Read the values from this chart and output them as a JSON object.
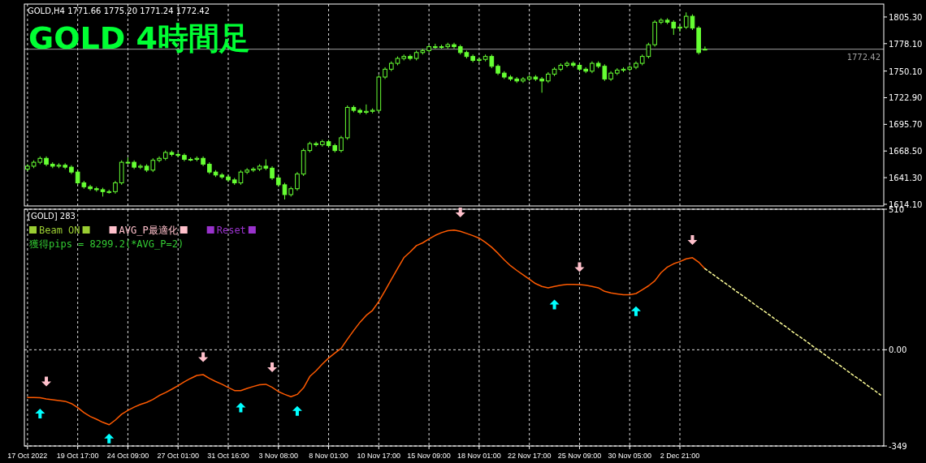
{
  "chart_data": [
    {
      "type": "candlestick",
      "title": "GOLD 4時間足",
      "subtitle": "GOLD,H4  1771.66 1775.20 1771.24 1772.42",
      "color": "#66ff33",
      "grid": "x",
      "tick_labels": "y",
      "ylim": [
        1612.4,
        1818.5
      ],
      "yticks": [
        {
          "value": 1805.3,
          "label": "1805.30"
        },
        {
          "value": 1778.1,
          "label": "1778.10"
        },
        {
          "value": 1750.1,
          "label": "1750.10"
        },
        {
          "value": 1722.9,
          "label": "1722.90"
        },
        {
          "value": 1695.7,
          "label": "1695.70"
        },
        {
          "value": 1668.5,
          "label": "1668.50"
        },
        {
          "value": 1641.3,
          "label": "1641.30"
        },
        {
          "value": 1614.1,
          "label": "1614.10"
        }
      ],
      "ref_lines": [
        {
          "axis": "y",
          "value": 1772.42,
          "label": "1772.42",
          "color": "#a0a0a0"
        }
      ],
      "ohlc": [
        [
          1650,
          1655,
          1648,
          1653
        ],
        [
          1653,
          1659,
          1651,
          1657
        ],
        [
          1657,
          1663,
          1655,
          1661
        ],
        [
          1661,
          1663,
          1653,
          1655
        ],
        [
          1655,
          1657,
          1651,
          1653
        ],
        [
          1653,
          1656,
          1651,
          1654
        ],
        [
          1654,
          1656,
          1650,
          1652
        ],
        [
          1652,
          1654,
          1645,
          1647
        ],
        [
          1647,
          1649,
          1634,
          1636
        ],
        [
          1636,
          1638,
          1630,
          1632
        ],
        [
          1632,
          1634,
          1628,
          1630
        ],
        [
          1630,
          1632,
          1627,
          1629
        ],
        [
          1629,
          1631,
          1622,
          1627
        ],
        [
          1627,
          1629,
          1625,
          1627
        ],
        [
          1627,
          1638,
          1625,
          1636
        ],
        [
          1636,
          1659,
          1634,
          1657
        ],
        [
          1657,
          1662,
          1655,
          1657
        ],
        [
          1657,
          1659,
          1650,
          1652
        ],
        [
          1652,
          1655,
          1650,
          1653
        ],
        [
          1653,
          1655,
          1647,
          1649
        ],
        [
          1649,
          1661,
          1647,
          1659
        ],
        [
          1659,
          1663,
          1657,
          1661
        ],
        [
          1661,
          1669,
          1659,
          1667
        ],
        [
          1667,
          1669,
          1663,
          1665
        ],
        [
          1665,
          1667,
          1662,
          1664
        ],
        [
          1664,
          1666,
          1658,
          1660
        ],
        [
          1660,
          1662,
          1658,
          1660
        ],
        [
          1660,
          1663,
          1658,
          1661
        ],
        [
          1661,
          1663,
          1653,
          1655
        ],
        [
          1655,
          1657,
          1645,
          1647
        ],
        [
          1647,
          1649,
          1642,
          1644
        ],
        [
          1644,
          1646,
          1640,
          1642
        ],
        [
          1642,
          1644,
          1637,
          1639
        ],
        [
          1639,
          1641,
          1634,
          1636
        ],
        [
          1636,
          1649,
          1634,
          1647
        ],
        [
          1647,
          1651,
          1645,
          1649
        ],
        [
          1649,
          1652,
          1647,
          1650
        ],
        [
          1650,
          1655,
          1648,
          1653
        ],
        [
          1653,
          1660,
          1649,
          1651
        ],
        [
          1651,
          1653,
          1639,
          1641
        ],
        [
          1641,
          1643,
          1632,
          1634
        ],
        [
          1634,
          1636,
          1619,
          1624
        ],
        [
          1624,
          1632,
          1622,
          1630
        ],
        [
          1630,
          1647,
          1628,
          1645
        ],
        [
          1645,
          1671,
          1643,
          1669
        ],
        [
          1669,
          1678,
          1667,
          1676
        ],
        [
          1676,
          1678,
          1673,
          1675
        ],
        [
          1675,
          1680,
          1673,
          1678
        ],
        [
          1678,
          1680,
          1672,
          1674
        ],
        [
          1674,
          1676,
          1667,
          1669
        ],
        [
          1669,
          1684,
          1667,
          1682
        ],
        [
          1682,
          1715,
          1680,
          1713
        ],
        [
          1713,
          1715,
          1708,
          1710
        ],
        [
          1710,
          1712,
          1706,
          1708
        ],
        [
          1708,
          1716,
          1706,
          1709
        ],
        [
          1709,
          1712,
          1707,
          1710
        ],
        [
          1710,
          1746,
          1708,
          1744
        ],
        [
          1744,
          1754,
          1742,
          1752
        ],
        [
          1752,
          1760,
          1750,
          1758
        ],
        [
          1758,
          1765,
          1756,
          1763
        ],
        [
          1763,
          1767,
          1761,
          1765
        ],
        [
          1765,
          1767,
          1761,
          1763
        ],
        [
          1763,
          1771,
          1761,
          1769
        ],
        [
          1769,
          1773,
          1767,
          1771
        ],
        [
          1771,
          1777,
          1769,
          1775
        ],
        [
          1775,
          1778,
          1773,
          1775
        ],
        [
          1775,
          1777,
          1773,
          1775
        ],
        [
          1775,
          1779,
          1773,
          1777
        ],
        [
          1777,
          1779,
          1773,
          1775
        ],
        [
          1775,
          1777,
          1767,
          1769
        ],
        [
          1769,
          1771,
          1763,
          1765
        ],
        [
          1765,
          1767,
          1759,
          1761
        ],
        [
          1761,
          1764,
          1759,
          1762
        ],
        [
          1762,
          1767,
          1760,
          1765
        ],
        [
          1765,
          1767,
          1753,
          1755
        ],
        [
          1755,
          1757,
          1746,
          1748
        ],
        [
          1748,
          1750,
          1742,
          1744
        ],
        [
          1744,
          1746,
          1740,
          1742
        ],
        [
          1742,
          1744,
          1738,
          1740
        ],
        [
          1740,
          1744,
          1738,
          1742
        ],
        [
          1742,
          1746,
          1740,
          1744
        ],
        [
          1744,
          1746,
          1740,
          1742
        ],
        [
          1742,
          1744,
          1728,
          1740
        ],
        [
          1740,
          1749,
          1738,
          1747
        ],
        [
          1747,
          1754,
          1745,
          1752
        ],
        [
          1752,
          1758,
          1750,
          1756
        ],
        [
          1756,
          1760,
          1754,
          1758
        ],
        [
          1758,
          1760,
          1754,
          1756
        ],
        [
          1756,
          1758,
          1750,
          1752
        ],
        [
          1752,
          1754,
          1748,
          1750
        ],
        [
          1750,
          1760,
          1748,
          1758
        ],
        [
          1758,
          1760,
          1753,
          1755
        ],
        [
          1755,
          1757,
          1740,
          1742
        ],
        [
          1742,
          1750,
          1740,
          1748
        ],
        [
          1748,
          1753,
          1746,
          1751
        ],
        [
          1751,
          1754,
          1749,
          1752
        ],
        [
          1752,
          1756,
          1750,
          1754
        ],
        [
          1754,
          1760,
          1752,
          1758
        ],
        [
          1758,
          1767,
          1756,
          1765
        ],
        [
          1765,
          1779,
          1763,
          1777
        ],
        [
          1777,
          1802,
          1775,
          1800
        ],
        [
          1800,
          1804,
          1798,
          1802
        ],
        [
          1802,
          1804,
          1798,
          1800
        ],
        [
          1800,
          1802,
          1787,
          1794
        ],
        [
          1794,
          1797,
          1790,
          1795
        ],
        [
          1795,
          1810,
          1793,
          1806
        ],
        [
          1806,
          1808,
          1792,
          1794
        ],
        [
          1794,
          1796,
          1767,
          1769
        ],
        [
          1771.66,
          1775.2,
          1771.24,
          1772.42
        ],
        null,
        null,
        null,
        null,
        null,
        null,
        null,
        null,
        null,
        null,
        null,
        null,
        null,
        null,
        null,
        null,
        null,
        null,
        null,
        null,
        null,
        null,
        null,
        null,
        null,
        null,
        null,
        null
      ]
    },
    {
      "type": "line",
      "grid": true,
      "categories": [
        "17 Oct 2022",
        null,
        null,
        null,
        null,
        null,
        null,
        null,
        "19 Oct 17:00",
        null,
        null,
        null,
        null,
        null,
        null,
        null,
        "24 Oct 09:00",
        null,
        null,
        null,
        null,
        null,
        null,
        null,
        "27 Oct 01:00",
        null,
        null,
        null,
        null,
        null,
        null,
        null,
        "31 Oct 16:00",
        null,
        null,
        null,
        null,
        null,
        null,
        null,
        "3 Nov 08:00",
        null,
        null,
        null,
        null,
        null,
        null,
        null,
        "8 Nov 01:00",
        null,
        null,
        null,
        null,
        null,
        null,
        null,
        "10 Nov 17:00",
        null,
        null,
        null,
        null,
        null,
        null,
        null,
        "15 Nov 09:00",
        null,
        null,
        null,
        null,
        null,
        null,
        null,
        "18 Nov 01:00",
        null,
        null,
        null,
        null,
        null,
        null,
        null,
        "22 Nov 17:00",
        null,
        null,
        null,
        null,
        null,
        null,
        null,
        "25 Nov 09:00",
        null,
        null,
        null,
        null,
        null,
        null,
        null,
        "30 Nov 05:00",
        null,
        null,
        null,
        null,
        null,
        null,
        null,
        "2 Dec 21:00",
        null,
        null,
        null,
        null,
        null,
        null,
        null,
        null,
        null,
        null,
        null,
        null,
        null,
        null,
        null,
        null,
        null,
        null,
        null,
        null,
        null,
        null,
        null,
        null,
        null,
        null,
        null,
        null,
        null,
        null,
        null,
        null
      ],
      "ylim": [
        -349,
        510
      ],
      "yticks": [
        510,
        {
          "value": 0,
          "label": "0.00"
        },
        -349
      ],
      "annotations": [
        "[GOLD] 283",
        "Beam ON",
        "AVG_P最適化",
        "Reset",
        "獲得pips = 8299.2(*AVG_P=2)"
      ],
      "series": [
        {
          "color": "#ff5a00",
          "values": [
            -173,
            -173,
            -174,
            -178,
            -181,
            -184,
            -187,
            -195,
            -210,
            -228,
            -242,
            -252,
            -263,
            -272,
            -255,
            -234,
            -220,
            -208,
            -198,
            -191,
            -180,
            -166,
            -155,
            -143,
            -130,
            -116,
            -104,
            -93,
            -90,
            -104,
            -115,
            -125,
            -137,
            -148,
            -148,
            -140,
            -133,
            -127,
            -125,
            -136,
            -152,
            -162,
            -170,
            -162,
            -138,
            -97,
            -76,
            -52,
            -30,
            -12,
            5,
            38,
            70,
            100,
            125,
            143,
            175,
            215,
            255,
            295,
            334,
            355,
            378,
            388,
            402,
            415,
            425,
            432,
            434,
            430,
            422,
            414,
            405,
            390,
            372,
            350,
            326,
            305,
            288,
            272,
            256,
            240,
            230,
            225,
            230,
            234,
            237,
            237,
            236,
            234,
            230,
            225,
            212,
            206,
            203,
            200,
            200,
            204,
            218,
            232,
            250,
            280,
            300,
            312,
            320,
            330,
            334,
            318,
            294,
            null,
            null,
            null,
            null,
            null,
            null,
            null,
            null,
            null,
            null,
            null,
            null,
            null,
            null,
            null,
            null,
            null,
            null,
            null,
            null,
            null,
            null,
            null,
            null,
            null,
            null,
            null,
            null
          ]
        },
        {
          "line_style": "dashed",
          "color": "#ffff99",
          "values": [
            null,
            null,
            null,
            null,
            null,
            null,
            null,
            null,
            null,
            null,
            null,
            null,
            null,
            null,
            null,
            null,
            null,
            null,
            null,
            null,
            null,
            null,
            null,
            null,
            null,
            null,
            null,
            null,
            null,
            null,
            null,
            null,
            null,
            null,
            null,
            null,
            null,
            null,
            null,
            null,
            null,
            null,
            null,
            null,
            null,
            null,
            null,
            null,
            null,
            null,
            null,
            null,
            null,
            null,
            null,
            null,
            null,
            null,
            null,
            null,
            null,
            null,
            null,
            null,
            null,
            null,
            null,
            null,
            null,
            null,
            null,
            null,
            null,
            null,
            null,
            null,
            null,
            null,
            null,
            null,
            null,
            null,
            null,
            null,
            null,
            null,
            null,
            null,
            null,
            null,
            null,
            null,
            null,
            null,
            null,
            null,
            null,
            null,
            null,
            null,
            null,
            null,
            null,
            null,
            null,
            null,
            null,
            null,
            294,
            278,
            261,
            245,
            229,
            212,
            196,
            180,
            163,
            147,
            131,
            114,
            98,
            82,
            65,
            49,
            33,
            16,
            0,
            -16,
            -33,
            -49,
            -65,
            -82,
            -98,
            -114,
            -131,
            -147,
            -164
          ]
        },
        {
          "type": "scatter",
          "color": "#ffc0cb",
          "values": [
            null,
            null,
            null,
            -115,
            null,
            null,
            null,
            null,
            null,
            null,
            null,
            null,
            null,
            null,
            null,
            null,
            null,
            null,
            null,
            null,
            null,
            null,
            null,
            null,
            null,
            null,
            null,
            null,
            -27,
            null,
            null,
            null,
            null,
            null,
            null,
            null,
            null,
            null,
            null,
            -64,
            null,
            null,
            null,
            null,
            null,
            null,
            null,
            null,
            null,
            null,
            null,
            null,
            null,
            null,
            null,
            null,
            null,
            null,
            null,
            null,
            null,
            null,
            null,
            null,
            null,
            null,
            null,
            null,
            null,
            498,
            null,
            null,
            null,
            null,
            null,
            null,
            null,
            null,
            null,
            null,
            null,
            null,
            null,
            null,
            null,
            null,
            null,
            null,
            300,
            null,
            null,
            null,
            null,
            null,
            null,
            null,
            null,
            null,
            null,
            null,
            null,
            null,
            null,
            null,
            null,
            null,
            398,
            null,
            null,
            null,
            null,
            null,
            null,
            null,
            null,
            null,
            null,
            null,
            null,
            null,
            null,
            null,
            null,
            null,
            null,
            null,
            null,
            null,
            null,
            null,
            null,
            null,
            null,
            null,
            null,
            null,
            null
          ]
        },
        {
          "type": "scatter",
          "color": "#00ffff",
          "values": [
            null,
            null,
            -231,
            null,
            null,
            null,
            null,
            null,
            null,
            null,
            null,
            null,
            null,
            -322,
            null,
            null,
            null,
            null,
            null,
            null,
            null,
            null,
            null,
            null,
            null,
            null,
            null,
            null,
            null,
            null,
            null,
            null,
            null,
            null,
            -209,
            null,
            null,
            null,
            null,
            null,
            null,
            null,
            null,
            -222,
            null,
            null,
            null,
            null,
            null,
            null,
            null,
            null,
            null,
            null,
            null,
            null,
            null,
            null,
            null,
            null,
            null,
            null,
            null,
            null,
            null,
            null,
            null,
            null,
            null,
            null,
            null,
            null,
            null,
            null,
            null,
            null,
            null,
            null,
            null,
            null,
            null,
            null,
            null,
            null,
            164,
            null,
            null,
            null,
            null,
            null,
            null,
            null,
            null,
            null,
            null,
            null,
            null,
            140,
            null,
            null,
            null,
            null,
            null,
            null,
            null,
            null,
            null,
            null,
            null,
            null,
            null,
            null,
            null,
            null,
            null,
            null,
            null,
            null,
            null,
            null,
            null,
            null,
            null,
            null,
            null,
            null,
            null,
            null,
            null,
            null,
            null,
            null,
            null,
            null,
            null,
            null,
            null
          ]
        }
      ]
    }
  ]
}
